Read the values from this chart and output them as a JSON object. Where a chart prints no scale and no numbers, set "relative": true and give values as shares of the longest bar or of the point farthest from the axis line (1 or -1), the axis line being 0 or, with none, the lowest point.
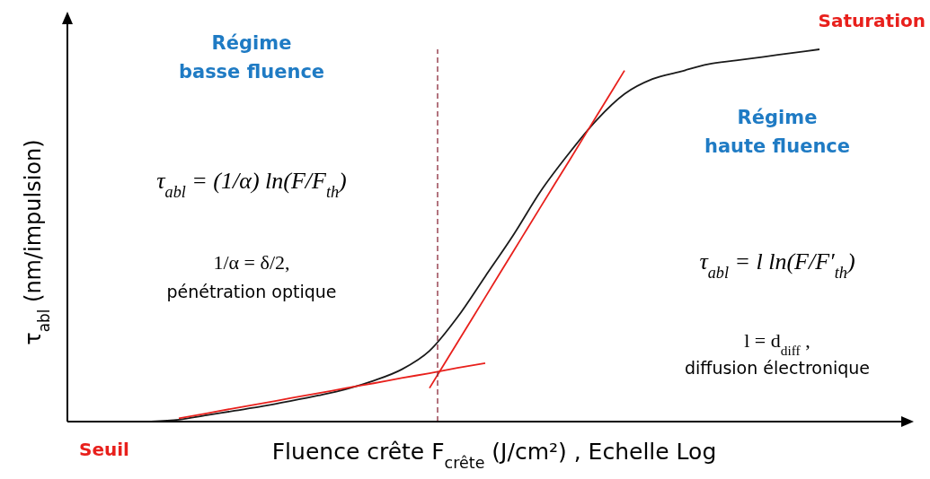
{
  "chart_data": {
    "type": "line",
    "relative": true,
    "xlabel": "Fluence crête F$_{crête}$ (J/cm²) , Echelle Log",
    "ylabel": "τ$_{abl}$ (nm/impulsion)",
    "categories": [
      null,
      null,
      null,
      null,
      null,
      null,
      null,
      null,
      null,
      null,
      null,
      null,
      null,
      null,
      null,
      null,
      null,
      null,
      null,
      null,
      null,
      null,
      null,
      null,
      null,
      null,
      null,
      null,
      null,
      null,
      null
    ],
    "series": [
      {
        "color": "#1a1a1a",
        "values": [
          null,
          null,
          null,
          0,
          0.005,
          0.017,
          0.029,
          0.041,
          0.055,
          0.07,
          0.087,
          0.11,
          0.14,
          0.19,
          0.28,
          0.39,
          0.5,
          0.62,
          0.72,
          0.81,
          0.88,
          0.92,
          0.94,
          0.96,
          0.97,
          0.98,
          0.99,
          1,
          null,
          null,
          null
        ]
      },
      {
        "color": "#e8201c",
        "values": [
          null,
          null,
          null,
          null,
          0.009,
          0.022,
          0.036,
          0.049,
          0.063,
          0.076,
          0.09,
          0.103,
          0.117,
          0.13,
          0.144,
          0.157,
          null,
          null,
          null,
          null,
          null,
          null,
          null,
          null,
          null,
          null,
          null,
          null,
          null,
          null,
          null
        ]
      },
      {
        "color": "#e8201c",
        "values": [
          null,
          null,
          null,
          null,
          null,
          null,
          null,
          null,
          null,
          null,
          null,
          null,
          null,
          0.09,
          0.212,
          0.334,
          0.456,
          0.578,
          0.699,
          0.821,
          0.943,
          null,
          null,
          null,
          null,
          null,
          null,
          null,
          null,
          null,
          null
        ]
      }
    ],
    "annotations": [
      "Régime\nbasse fluence",
      "τ$_{abl}$ = (1/α) ln(F/F$_{th}$)",
      "1/α = δ/2,",
      "pénétration optique",
      "Régime\nhaute fluence",
      "τ$_{abl}$ = l ln(F/F′$_{th}$)",
      "l = d$_{diff}$ ,",
      "diffusion électronique",
      "Seuil",
      "Saturation"
    ],
    "marker": "none",
    "line_style": "solid"
  }
}
